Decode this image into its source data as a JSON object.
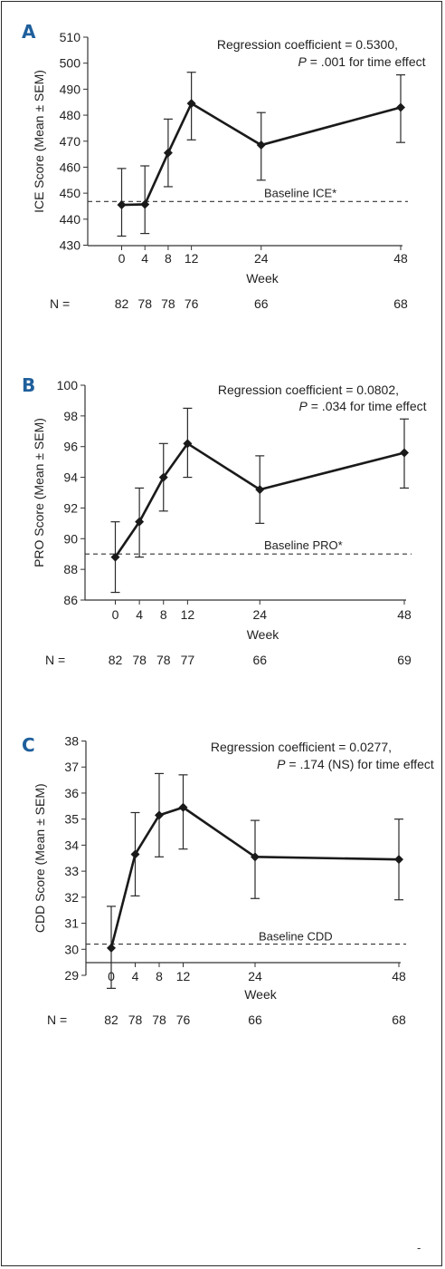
{
  "chart_data": [
    {
      "panel": "A",
      "type": "line",
      "ylabel": "ICE Score (Mean ± SEM)",
      "xlabel": "Week",
      "x": [
        0,
        4,
        8,
        12,
        24,
        48
      ],
      "x_ticks": [
        "0",
        "4",
        "8",
        "12",
        "24",
        "48"
      ],
      "y_ticks": [
        "430",
        "440",
        "450",
        "460",
        "470",
        "480",
        "490",
        "500",
        "510"
      ],
      "ylim": [
        430,
        510
      ],
      "series": [
        {
          "values": [
            445.5,
            445.7,
            465.5,
            484.5,
            468.5,
            483
          ],
          "err_upper": [
            459.5,
            460.5,
            478.5,
            496.5,
            481,
            495.5
          ],
          "err_lower": [
            433.5,
            434.5,
            452.5,
            470.5,
            455,
            469.5
          ]
        }
      ],
      "baseline": {
        "value": 446.8,
        "label": "Baseline ICE*"
      },
      "annotation": [
        "Regression coefficient = 0.5300,",
        "P",
        " = .001 for time effect"
      ],
      "n_label": "N =",
      "n_values": [
        "82",
        "78",
        "78",
        "76",
        "66",
        "68"
      ],
      "grid": false
    },
    {
      "panel": "B",
      "type": "line",
      "ylabel": "PRO Score (Mean ± SEM)",
      "xlabel": "Week",
      "x": [
        0,
        4,
        8,
        12,
        24,
        48
      ],
      "x_ticks": [
        "0",
        "4",
        "8",
        "12",
        "24",
        "48"
      ],
      "y_ticks": [
        "86",
        "88",
        "90",
        "92",
        "94",
        "96",
        "98",
        "100"
      ],
      "ylim": [
        86,
        100
      ],
      "series": [
        {
          "values": [
            88.8,
            91.1,
            94.0,
            96.2,
            93.2,
            95.6
          ],
          "err_upper": [
            91.1,
            93.3,
            96.2,
            98.5,
            95.4,
            97.8
          ],
          "err_lower": [
            86.5,
            88.8,
            91.8,
            94.0,
            91.0,
            93.3
          ]
        }
      ],
      "baseline": {
        "value": 89.0,
        "label": "Baseline PRO*"
      },
      "annotation": [
        "Regression coefficient = 0.0802,",
        "P",
        " = .034 for time effect"
      ],
      "n_label": "N =",
      "n_values": [
        "82",
        "78",
        "78",
        "77",
        "66",
        "69"
      ],
      "grid": false
    },
    {
      "panel": "C",
      "type": "line",
      "ylabel": "CDD Score (Mean ± SEM)",
      "xlabel": "Week",
      "x": [
        0,
        4,
        8,
        12,
        24,
        48
      ],
      "x_ticks": [
        "0",
        "4",
        "8",
        "12",
        "24",
        "48"
      ],
      "y_ticks": [
        "29",
        "30",
        "31",
        "32",
        "33",
        "34",
        "35",
        "36",
        "37",
        "38"
      ],
      "ylim": [
        29,
        38
      ],
      "series": [
        {
          "values": [
            30.05,
            33.65,
            35.15,
            35.45,
            33.55,
            33.45
          ],
          "err_upper": [
            31.65,
            35.25,
            36.75,
            36.7,
            34.95,
            35.0
          ],
          "err_lower": [
            28.5,
            32.05,
            33.55,
            33.85,
            31.95,
            31.9
          ]
        }
      ],
      "baseline": {
        "value": 30.2,
        "label": "Baseline CDD"
      },
      "annotation": [
        "Regression coefficient = 0.0277,",
        "P",
        " = .174 (NS) for time effect"
      ],
      "n_label": "N =",
      "n_values": [
        "82",
        "78",
        "78",
        "76",
        "66",
        "68"
      ],
      "grid": false
    }
  ],
  "corner_mark": "-"
}
